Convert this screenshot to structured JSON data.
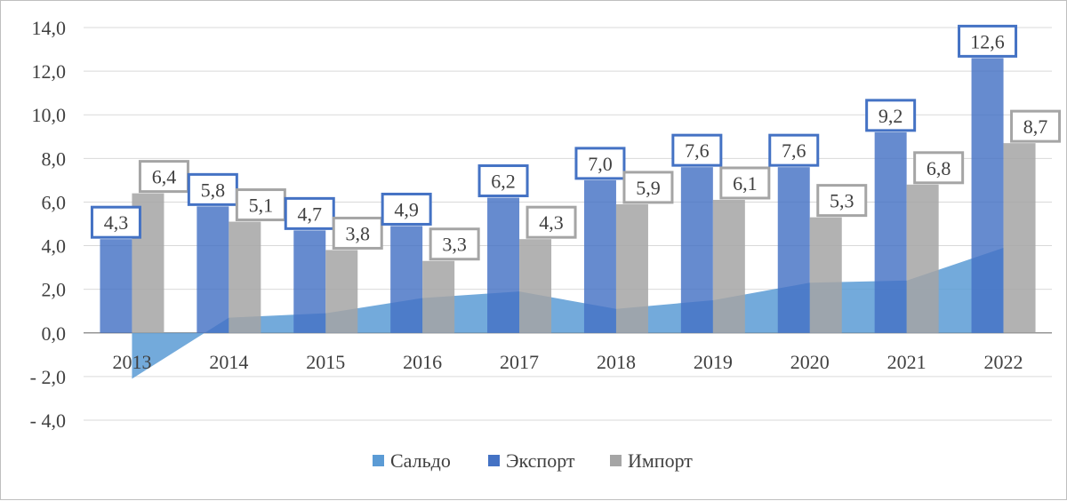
{
  "chart_data": {
    "type": "bar",
    "categories": [
      "2013",
      "2014",
      "2015",
      "2016",
      "2017",
      "2018",
      "2019",
      "2020",
      "2021",
      "2022"
    ],
    "series": [
      {
        "name": "Сальдо",
        "kind": "area",
        "color": "#5b9bd5",
        "values": [
          -2.1,
          0.7,
          0.9,
          1.6,
          1.9,
          1.1,
          1.5,
          2.3,
          2.4,
          3.9
        ]
      },
      {
        "name": "Экспорт",
        "kind": "bar",
        "color": "#4472c4",
        "values": [
          4.3,
          5.8,
          4.7,
          4.9,
          6.2,
          7.0,
          7.6,
          7.6,
          9.2,
          12.6
        ],
        "labels": [
          "4,3",
          "5,8",
          "4,7",
          "4,9",
          "6,2",
          "7,0",
          "7,6",
          "7,6",
          "9,2",
          "12,6"
        ]
      },
      {
        "name": "Импорт",
        "kind": "bar",
        "color": "#a5a5a5",
        "values": [
          6.4,
          5.1,
          3.8,
          3.3,
          4.3,
          5.9,
          6.1,
          5.3,
          6.8,
          8.7
        ],
        "labels": [
          "6,4",
          "5,1",
          "3,8",
          "3,3",
          "4,3",
          "5,9",
          "6,1",
          "5,3",
          "6,8",
          "8,7"
        ]
      }
    ],
    "ylim": [
      -4.0,
      14.0
    ],
    "yticks": [
      -4.0,
      -2.0,
      0.0,
      2.0,
      4.0,
      6.0,
      8.0,
      10.0,
      12.0,
      14.0
    ],
    "ytick_labels": [
      "- 4,0",
      "- 2,0",
      "0,0",
      "2,0",
      "4,0",
      "6,0",
      "8,0",
      "10,0",
      "12,0",
      "14,0"
    ],
    "grid": true,
    "legend_position": "bottom",
    "title": "",
    "xlabel": "",
    "ylabel": ""
  }
}
